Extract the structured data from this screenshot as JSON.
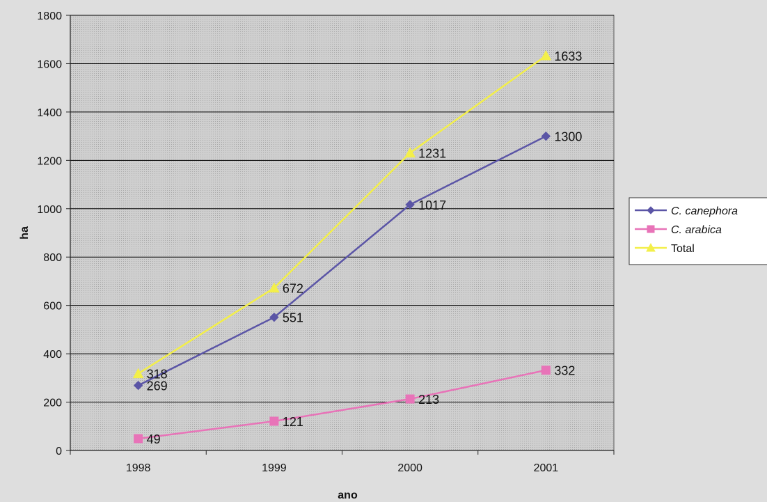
{
  "chart_data": {
    "type": "line",
    "categories": [
      "1998",
      "1999",
      "2000",
      "2001"
    ],
    "series": [
      {
        "name": "C. canephora",
        "values": [
          269,
          551,
          1017,
          1300
        ],
        "color": "#5b55a6",
        "marker": "diamond",
        "italic": true
      },
      {
        "name": "C. arabica",
        "values": [
          49,
          121,
          213,
          332
        ],
        "color": "#e873b8",
        "marker": "square",
        "italic": true
      },
      {
        "name": "Total",
        "values": [
          318,
          672,
          1231,
          1633
        ],
        "color": "#f3ef4a",
        "marker": "triangle",
        "italic": false
      }
    ],
    "xlabel": "ano",
    "ylabel": "ha",
    "ylim": [
      0,
      1800
    ],
    "yticks": [
      0,
      200,
      400,
      600,
      800,
      1000,
      1200,
      1400,
      1600,
      1800
    ],
    "grid": true,
    "legend_position": "right",
    "plot_background": "#c9c9c9",
    "gridline_color": "#000000"
  }
}
